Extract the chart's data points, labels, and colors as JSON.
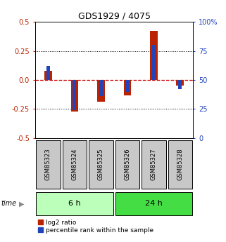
{
  "title": "GDS1929 / 4075",
  "samples": [
    "GSM85323",
    "GSM85324",
    "GSM85325",
    "GSM85326",
    "GSM85327",
    "GSM85328"
  ],
  "log2_ratio": [
    0.08,
    -0.27,
    -0.19,
    -0.13,
    0.42,
    -0.05
  ],
  "percentile_rank": [
    0.12,
    -0.26,
    -0.14,
    -0.1,
    0.3,
    -0.08
  ],
  "groups": [
    {
      "label": "6 h",
      "color_light": "#bbffbb",
      "color_dark": "#44dd44",
      "start": 0,
      "end": 3
    },
    {
      "label": "24 h",
      "color_light": "#44dd44",
      "color_dark": "#00bb00",
      "start": 3,
      "end": 6
    }
  ],
  "ylim": [
    -0.5,
    0.5
  ],
  "yticks_left": [
    -0.5,
    -0.25,
    0.0,
    0.25,
    0.5
  ],
  "yticks_right": [
    0,
    25,
    50,
    75,
    100
  ],
  "log2_color": "#bb2200",
  "percentile_color": "#2244bb",
  "zero_line_color": "#cc0000",
  "grid_color": "#000000",
  "bg_color": "#ffffff",
  "sample_box_color": "#c8c8c8",
  "time_label": "time",
  "legend_log2": "log2 ratio",
  "legend_pct": "percentile rank within the sample",
  "title_fontsize": 9,
  "tick_fontsize": 7,
  "sample_fontsize": 6,
  "group_fontsize": 8,
  "legend_fontsize": 6.5
}
